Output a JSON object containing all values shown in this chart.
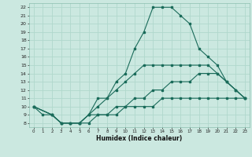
{
  "xlabel": "Humidex (Indice chaleur)",
  "bg_color": "#cbe8e0",
  "grid_color": "#b0d8cc",
  "line_color": "#1a6b5a",
  "spine_color": "#8bbfb0",
  "xlim": [
    -0.5,
    23.5
  ],
  "ylim": [
    7.5,
    22.5
  ],
  "xticks": [
    0,
    1,
    2,
    3,
    4,
    5,
    6,
    7,
    8,
    9,
    10,
    11,
    12,
    13,
    14,
    15,
    16,
    17,
    18,
    19,
    20,
    21,
    22,
    23
  ],
  "yticks": [
    8,
    9,
    10,
    11,
    12,
    13,
    14,
    15,
    16,
    17,
    18,
    19,
    20,
    21,
    22
  ],
  "line1_x": [
    0,
    1,
    2,
    3,
    4,
    5,
    6,
    7,
    8,
    9,
    10,
    11,
    12,
    13,
    14,
    15,
    16,
    17,
    18,
    19,
    20,
    21,
    22,
    23
  ],
  "line1_y": [
    10,
    9,
    9,
    8,
    8,
    8,
    9,
    11,
    11,
    13,
    14,
    17,
    19,
    22,
    22,
    22,
    21,
    20,
    17,
    16,
    15,
    13,
    12,
    11
  ],
  "line2_x": [
    0,
    2,
    3,
    4,
    5,
    6,
    7,
    8,
    9,
    10,
    11,
    12,
    13,
    14,
    15,
    16,
    17,
    18,
    19,
    20,
    21,
    22,
    23
  ],
  "line2_y": [
    10,
    9,
    8,
    8,
    8,
    9,
    10,
    11,
    12,
    13,
    14,
    15,
    15,
    15,
    15,
    15,
    15,
    15,
    15,
    14,
    13,
    12,
    11
  ],
  "line3_x": [
    0,
    2,
    3,
    4,
    5,
    6,
    7,
    8,
    9,
    10,
    11,
    12,
    13,
    14,
    15,
    16,
    17,
    18,
    19,
    20,
    21,
    22,
    23
  ],
  "line3_y": [
    10,
    9,
    8,
    8,
    8,
    9,
    9,
    9,
    10,
    10,
    11,
    11,
    12,
    12,
    13,
    13,
    13,
    14,
    14,
    14,
    13,
    12,
    11
  ],
  "line4_x": [
    0,
    2,
    3,
    4,
    5,
    6,
    7,
    8,
    9,
    10,
    11,
    12,
    13,
    14,
    15,
    16,
    17,
    18,
    19,
    20,
    21,
    22,
    23
  ],
  "line4_y": [
    10,
    9,
    8,
    8,
    8,
    8,
    9,
    9,
    9,
    10,
    10,
    10,
    10,
    11,
    11,
    11,
    11,
    11,
    11,
    11,
    11,
    11,
    11
  ]
}
